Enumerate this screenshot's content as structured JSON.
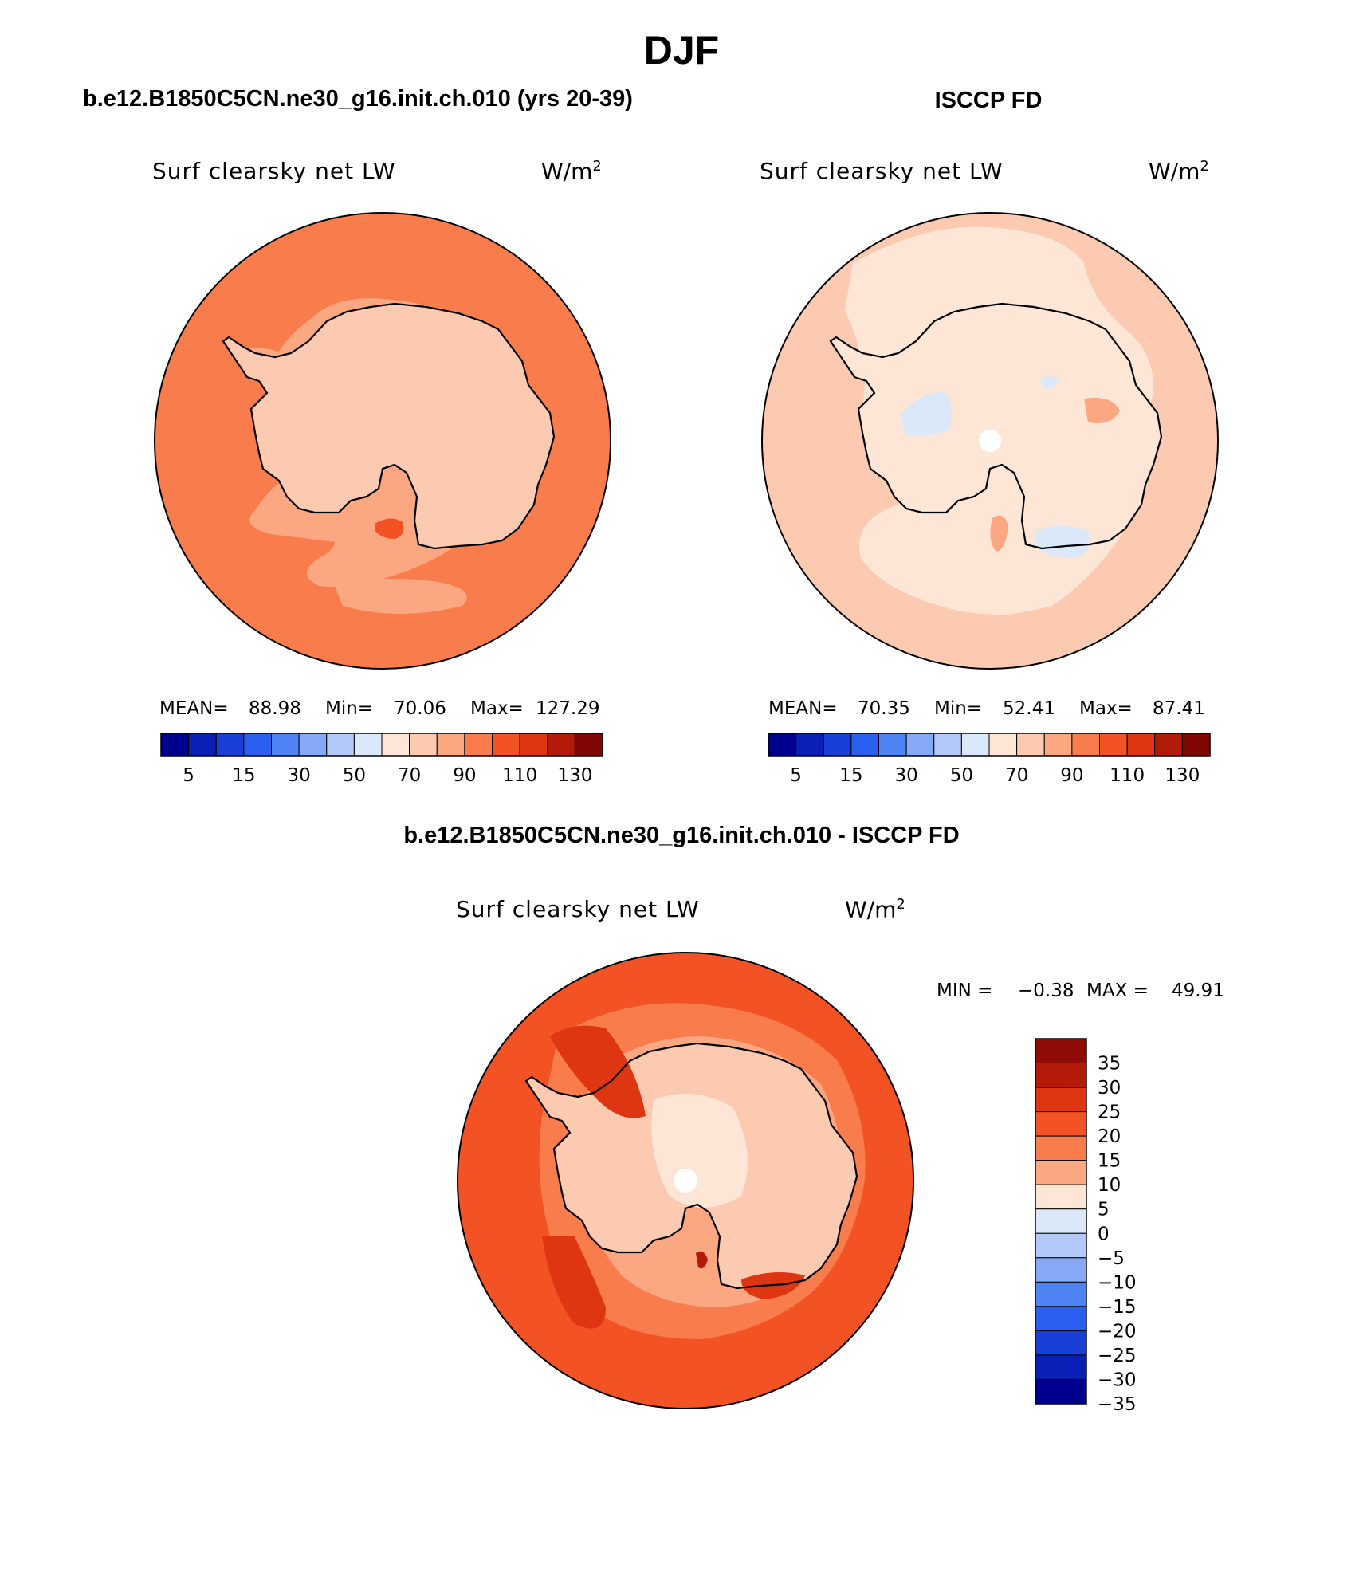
{
  "main_title": "DJF",
  "panels": [
    {
      "id": "model",
      "header": "b.e12.B1850C5CN.ne30_g16.init.ch.010 (yrs 20-39)",
      "variable": "Surf clearsky net LW",
      "units": "W/m",
      "units_sup": "2",
      "stats": {
        "mean_label": "MEAN=",
        "mean": "88.98",
        "min_label": "Min=",
        "min": "70.06",
        "max_label": "Max=",
        "max": "127.29"
      }
    },
    {
      "id": "obs",
      "header": "ISCCP FD",
      "variable": "Surf clearsky net LW",
      "units": "W/m",
      "units_sup": "2",
      "stats": {
        "mean_label": "MEAN=",
        "mean": "70.35",
        "min_label": "Min=",
        "min": "52.41",
        "max_label": "Max=",
        "max": "87.41"
      }
    },
    {
      "id": "diff",
      "header": "b.e12.B1850C5CN.ne30_g16.init.ch.010 - ISCCP FD",
      "variable": "Surf clearsky net LW",
      "units": "W/m",
      "units_sup": "2",
      "stats": {
        "min_label": "MIN =",
        "min": "−0.38",
        "max_label": "MAX =",
        "max": "49.91"
      }
    }
  ],
  "colorbar_abs": {
    "colors": [
      "#00008f",
      "#0a1fb5",
      "#1a3fd6",
      "#2a5ff0",
      "#4f82f2",
      "#85a9f5",
      "#b3c9f7",
      "#dbe8fa",
      "#fde6d6",
      "#fccab0",
      "#fba882",
      "#f97c4d",
      "#f35225",
      "#de3512",
      "#b41a0a",
      "#7f0605"
    ],
    "tick_labels": [
      "5",
      "15",
      "30",
      "50",
      "70",
      "90",
      "110",
      "130"
    ]
  },
  "colorbar_diff": {
    "colors": [
      "#8f0b06",
      "#b41a0a",
      "#de3512",
      "#f35225",
      "#f97c4d",
      "#fba882",
      "#fde6d6",
      "#dbe8fa",
      "#b3c9f7",
      "#85a9f5",
      "#4f82f2",
      "#2a5ff0",
      "#1a3fd6",
      "#0a1fb5",
      "#00008f"
    ],
    "tick_labels": [
      "35",
      "30",
      "25",
      "20",
      "15",
      "10",
      "5",
      "0",
      "−5",
      "−10",
      "−15",
      "−20",
      "−25",
      "−30",
      "−35"
    ]
  },
  "map_colors": {
    "model_ocean": "#f97c4d",
    "model_band": "#fba882",
    "model_land": "#fccab0",
    "model_hot": "#f35225",
    "obs_ocean": "#fccab0",
    "obs_land": "#fde6d6",
    "obs_blue": "#dbe8fa",
    "obs_warm": "#fba882",
    "diff_ocean": "#f35225",
    "diff_mid": "#f97c4d",
    "diff_light": "#fba882",
    "diff_pale": "#fccab0",
    "diff_dark": "#de3512",
    "diff_darkest": "#b41a0a",
    "pole_hole": "#ffffff",
    "coast": "#000000"
  }
}
